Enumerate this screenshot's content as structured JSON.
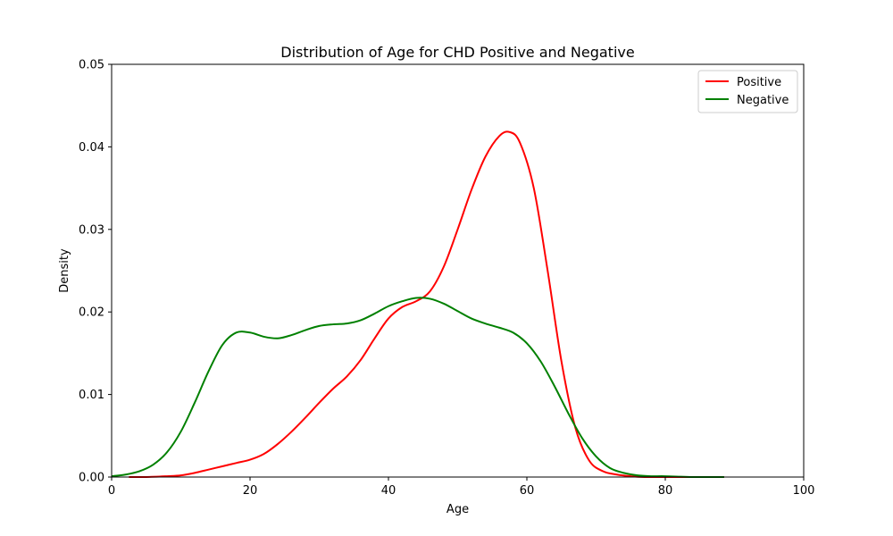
{
  "chart_data": {
    "type": "line",
    "title": "Distribution of Age for CHD Positive and Negative",
    "xlabel": "Age",
    "ylabel": "Density",
    "xlim": [
      0,
      100
    ],
    "ylim": [
      0,
      0.05
    ],
    "xticks": [
      0,
      20,
      40,
      60,
      80,
      100
    ],
    "xtick_labels": [
      "0",
      "20",
      "40",
      "60",
      "80",
      "100"
    ],
    "yticks": [
      0,
      0.01,
      0.02,
      0.03,
      0.04,
      0.05
    ],
    "ytick_labels": [
      "0.00",
      "0.01",
      "0.02",
      "0.03",
      "0.04",
      "0.05"
    ],
    "grid": false,
    "legend_position": "top-right",
    "series": [
      {
        "name": "Positive",
        "color": "#ff0000",
        "x": [
          2.5,
          5,
          8,
          10,
          12,
          14,
          16,
          18,
          20,
          22,
          24,
          26,
          28,
          30,
          32,
          34,
          36,
          38,
          40,
          42,
          44,
          46,
          48,
          50,
          52,
          54,
          56,
          57.5,
          59,
          61,
          63,
          65,
          67,
          69,
          71,
          73,
          75,
          77,
          80,
          83,
          86,
          88.5
        ],
        "values": [
          0.0,
          0.0,
          0.0001,
          0.0002,
          0.0005,
          0.0009,
          0.0013,
          0.0017,
          0.0021,
          0.0028,
          0.004,
          0.0055,
          0.0072,
          0.009,
          0.0107,
          0.0122,
          0.0142,
          0.0168,
          0.0192,
          0.0206,
          0.0213,
          0.0225,
          0.0255,
          0.03,
          0.0348,
          0.0388,
          0.0413,
          0.0418,
          0.0405,
          0.035,
          0.025,
          0.014,
          0.006,
          0.002,
          0.0007,
          0.0003,
          0.0001,
          0.0,
          0.0,
          0.0,
          0.0,
          0.0
        ]
      },
      {
        "name": "Negative",
        "color": "#008000",
        "x": [
          0,
          2,
          4,
          6,
          8,
          10,
          12,
          14,
          16,
          18,
          20,
          22,
          24,
          26,
          28,
          30,
          32,
          34,
          36,
          38,
          40,
          42,
          44,
          46,
          48,
          50,
          52,
          54,
          56,
          58,
          60,
          62,
          64,
          66,
          68,
          70,
          72,
          74,
          76,
          78,
          80,
          84,
          88.5
        ],
        "values": [
          0.0001,
          0.0003,
          0.0007,
          0.0015,
          0.003,
          0.0055,
          0.009,
          0.0128,
          0.016,
          0.0175,
          0.0175,
          0.017,
          0.0168,
          0.0172,
          0.0178,
          0.0183,
          0.0185,
          0.0186,
          0.019,
          0.0198,
          0.0207,
          0.0213,
          0.0217,
          0.0216,
          0.021,
          0.0201,
          0.0192,
          0.0186,
          0.0181,
          0.0175,
          0.0162,
          0.014,
          0.011,
          0.0077,
          0.0047,
          0.0025,
          0.0011,
          0.0005,
          0.0002,
          0.0001,
          0.0001,
          0.0,
          0.0
        ]
      }
    ]
  }
}
